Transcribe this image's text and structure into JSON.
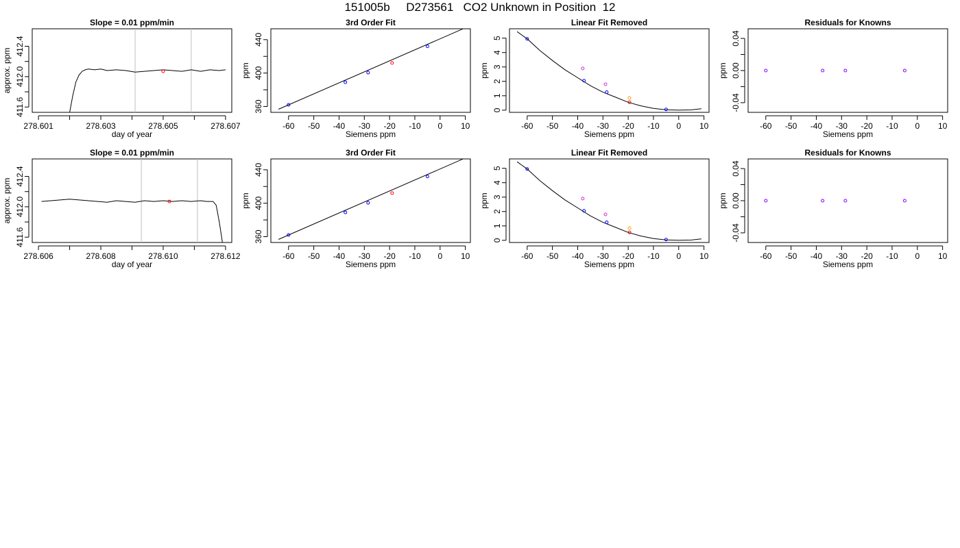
{
  "page": {
    "title": "151005b     D273561   CO2 Unknown in Position  12"
  },
  "colors": {
    "line": "#000000",
    "vline": "#bebebe",
    "axis": "#000000",
    "std_blue": "#0000ff",
    "unknown_red": "#ff0000",
    "magenta": "#cc33cc",
    "orange": "#ffa500",
    "purple": "#8000ff"
  },
  "chart_data": [
    {
      "id": "r1-timeseries",
      "type": "line",
      "title": "Slope =  0.01  ppm/min",
      "xlabel": "day of year",
      "ylabel": "approx. ppm",
      "xlim": [
        278.6008,
        278.6072
      ],
      "ylim": [
        411.53,
        412.63
      ],
      "xticks": [
        278.601,
        278.602,
        278.603,
        278.604,
        278.605,
        278.606,
        278.607
      ],
      "xticklabels": [
        "278.601",
        "",
        "278.603",
        "",
        "278.605",
        "",
        "278.607"
      ],
      "yticks": [
        411.6,
        411.8,
        412.0,
        412.2,
        412.4
      ],
      "yticklabels": [
        "411.6",
        "",
        "412.0",
        "",
        "412.4"
      ],
      "vlines": [
        278.6041,
        278.6059
      ],
      "series": [
        {
          "kind": "line",
          "x": [
            278.602,
            278.6021,
            278.6022,
            278.6023,
            278.6024,
            278.6025,
            278.6026,
            278.6028,
            278.603,
            278.6032,
            278.6035,
            278.6038,
            278.6041,
            278.6044,
            278.6047,
            278.605,
            278.6053,
            278.6056,
            278.6059,
            278.6062,
            278.6065,
            278.6068,
            278.607
          ],
          "y": [
            411.53,
            411.75,
            411.93,
            412.02,
            412.07,
            412.09,
            412.1,
            412.09,
            412.1,
            412.08,
            412.09,
            412.08,
            412.06,
            412.07,
            412.08,
            412.09,
            412.08,
            412.07,
            412.09,
            412.07,
            412.09,
            412.08,
            412.09
          ]
        },
        {
          "kind": "points",
          "color": "unknown_red",
          "x": [
            278.605
          ],
          "y": [
            412.07
          ]
        }
      ]
    },
    {
      "id": "r1-fit",
      "type": "scatter",
      "title": "3rd Order Fit",
      "xlabel": "Siemens ppm",
      "ylabel": "ppm",
      "xlim": [
        -67,
        12
      ],
      "ylim": [
        353,
        453
      ],
      "xticks": [
        -60,
        -50,
        -40,
        -30,
        -20,
        -10,
        0,
        10
      ],
      "xticklabels": [
        "-60",
        "-50",
        "-40",
        "-30",
        "-20",
        "-10",
        "0",
        "10"
      ],
      "yticks": [
        360,
        380,
        400,
        420,
        440
      ],
      "yticklabels": [
        "360",
        "",
        "400",
        "",
        "440"
      ],
      "series": [
        {
          "kind": "line",
          "x": [
            -64,
            9
          ],
          "y": [
            356.7,
            452.8
          ]
        },
        {
          "kind": "points",
          "color": "std_blue",
          "x": [
            -60,
            -37.5,
            -28.5,
            -5
          ],
          "y": [
            362,
            389,
            400.5,
            432
          ]
        },
        {
          "kind": "points",
          "color": "unknown_red",
          "x": [
            -19
          ],
          "y": [
            412.1
          ]
        }
      ]
    },
    {
      "id": "r1-linear-removed",
      "type": "scatter",
      "title": "Linear Fit Removed",
      "xlabel": "Siemens ppm",
      "ylabel": "ppm",
      "xlim": [
        -67,
        12
      ],
      "ylim": [
        -0.15,
        5.65
      ],
      "xticks": [
        -60,
        -50,
        -40,
        -30,
        -20,
        -10,
        0,
        10
      ],
      "xticklabels": [
        "-60",
        "-50",
        "-40",
        "-30",
        "-20",
        "-10",
        "0",
        "10"
      ],
      "yticks": [
        0,
        1,
        2,
        3,
        4,
        5
      ],
      "yticklabels": [
        "0",
        "1",
        "2",
        "3",
        "4",
        "5"
      ],
      "series": [
        {
          "kind": "curve",
          "x": [
            -64,
            -60,
            -55,
            -50,
            -45,
            -40,
            -35,
            -30,
            -25,
            -20,
            -15,
            -10,
            -5,
            0,
            5,
            9
          ],
          "y": [
            5.45,
            4.95,
            4.15,
            3.45,
            2.8,
            2.25,
            1.7,
            1.25,
            0.9,
            0.55,
            0.3,
            0.12,
            0.03,
            0.0,
            0.02,
            0.1
          ]
        },
        {
          "kind": "points",
          "color": "std_blue",
          "x": [
            -60,
            -37.5,
            -28.5,
            -5
          ],
          "y": [
            4.95,
            2.05,
            1.25,
            0.05
          ]
        },
        {
          "kind": "points",
          "color": "magenta",
          "x": [
            -38,
            -29
          ],
          "y": [
            2.9,
            1.8
          ]
        },
        {
          "kind": "points",
          "color": "orange",
          "x": [
            -19.5
          ],
          "y": [
            0.85
          ]
        },
        {
          "kind": "points",
          "color": "unknown_red",
          "x": [
            -19.5
          ],
          "y": [
            0.55
          ]
        }
      ]
    },
    {
      "id": "r1-residuals",
      "type": "scatter",
      "title": "Residuals for Knowns",
      "xlabel": "Siemens ppm",
      "ylabel": "ppm",
      "xlim": [
        -67,
        12
      ],
      "ylim": [
        -0.052,
        0.052
      ],
      "xticks": [
        -60,
        -50,
        -40,
        -30,
        -20,
        -10,
        0,
        10
      ],
      "xticklabels": [
        "-60",
        "-50",
        "-40",
        "-30",
        "-20",
        "-10",
        "0",
        "10"
      ],
      "yticks": [
        -0.04,
        -0.02,
        0,
        0.02,
        0.04
      ],
      "yticklabels": [
        "-0.04",
        "",
        "0.00",
        "",
        "0.04"
      ],
      "series": [
        {
          "kind": "points",
          "color": "purple",
          "x": [
            -60,
            -37.5,
            -28.5,
            -5
          ],
          "y": [
            0,
            0,
            0,
            0
          ]
        }
      ]
    },
    {
      "id": "r2-timeseries",
      "type": "line",
      "title": "Slope =  0.01  ppm/min",
      "xlabel": "day of year",
      "ylabel": "approx. ppm",
      "xlim": [
        278.6058,
        278.6122
      ],
      "ylim": [
        411.53,
        412.63
      ],
      "xticks": [
        278.606,
        278.607,
        278.608,
        278.609,
        278.61,
        278.611,
        278.612
      ],
      "xticklabels": [
        "278.606",
        "",
        "278.608",
        "",
        "278.610",
        "",
        "278.612"
      ],
      "yticks": [
        411.6,
        411.8,
        412.0,
        412.2,
        412.4
      ],
      "yticklabels": [
        "411.6",
        "",
        "412.0",
        "",
        "412.4"
      ],
      "vlines": [
        278.6093,
        278.6111
      ],
      "series": [
        {
          "kind": "line",
          "x": [
            278.6061,
            278.6064,
            278.6067,
            278.607,
            278.6073,
            278.6076,
            278.6079,
            278.6082,
            278.6085,
            278.6088,
            278.6091,
            278.6094,
            278.6097,
            278.61,
            278.6103,
            278.6106,
            278.6109,
            278.6112,
            278.6114,
            278.6116,
            278.6117,
            278.6118,
            278.6119
          ],
          "y": [
            412.07,
            412.08,
            412.09,
            412.1,
            412.09,
            412.08,
            412.07,
            412.06,
            412.08,
            412.07,
            412.06,
            412.08,
            412.07,
            412.08,
            412.07,
            412.08,
            412.07,
            412.08,
            412.07,
            412.07,
            412.02,
            411.8,
            411.53
          ]
        },
        {
          "kind": "points",
          "color": "unknown_red",
          "x": [
            278.6102
          ],
          "y": [
            412.07
          ]
        }
      ]
    },
    {
      "id": "r2-fit",
      "type": "scatter",
      "title": "3rd Order Fit",
      "xlabel": "Siemens ppm",
      "ylabel": "ppm",
      "xlim": [
        -67,
        12
      ],
      "ylim": [
        353,
        453
      ],
      "xticks": [
        -60,
        -50,
        -40,
        -30,
        -20,
        -10,
        0,
        10
      ],
      "xticklabels": [
        "-60",
        "-50",
        "-40",
        "-30",
        "-20",
        "-10",
        "0",
        "10"
      ],
      "yticks": [
        360,
        380,
        400,
        420,
        440
      ],
      "yticklabels": [
        "360",
        "",
        "400",
        "",
        "440"
      ],
      "series": [
        {
          "kind": "line",
          "x": [
            -64,
            9
          ],
          "y": [
            356.7,
            452.8
          ]
        },
        {
          "kind": "points",
          "color": "std_blue",
          "x": [
            -60,
            -37.5,
            -28.5,
            -5
          ],
          "y": [
            362,
            389,
            400.5,
            432
          ]
        },
        {
          "kind": "points",
          "color": "unknown_red",
          "x": [
            -19
          ],
          "y": [
            412.1
          ]
        }
      ]
    },
    {
      "id": "r2-linear-removed",
      "type": "scatter",
      "title": "Linear Fit Removed",
      "xlabel": "Siemens ppm",
      "ylabel": "ppm",
      "xlim": [
        -67,
        12
      ],
      "ylim": [
        -0.15,
        5.65
      ],
      "xticks": [
        -60,
        -50,
        -40,
        -30,
        -20,
        -10,
        0,
        10
      ],
      "xticklabels": [
        "-60",
        "-50",
        "-40",
        "-30",
        "-20",
        "-10",
        "0",
        "10"
      ],
      "yticks": [
        0,
        1,
        2,
        3,
        4,
        5
      ],
      "yticklabels": [
        "0",
        "1",
        "2",
        "3",
        "4",
        "5"
      ],
      "series": [
        {
          "kind": "curve",
          "x": [
            -64,
            -60,
            -55,
            -50,
            -45,
            -40,
            -35,
            -30,
            -25,
            -20,
            -15,
            -10,
            -5,
            0,
            5,
            9
          ],
          "y": [
            5.45,
            4.95,
            4.15,
            3.45,
            2.8,
            2.25,
            1.7,
            1.25,
            0.9,
            0.55,
            0.3,
            0.12,
            0.03,
            0.0,
            0.02,
            0.1
          ]
        },
        {
          "kind": "points",
          "color": "std_blue",
          "x": [
            -60,
            -37.5,
            -28.5,
            -5
          ],
          "y": [
            4.95,
            2.05,
            1.25,
            0.05
          ]
        },
        {
          "kind": "points",
          "color": "magenta",
          "x": [
            -38,
            -29
          ],
          "y": [
            2.9,
            1.8
          ]
        },
        {
          "kind": "points",
          "color": "orange",
          "x": [
            -19.5
          ],
          "y": [
            0.85
          ]
        },
        {
          "kind": "points",
          "color": "unknown_red",
          "x": [
            -19.5
          ],
          "y": [
            0.55
          ]
        }
      ]
    },
    {
      "id": "r2-residuals",
      "type": "scatter",
      "title": "Residuals for Knowns",
      "xlabel": "Siemens ppm",
      "ylabel": "ppm",
      "xlim": [
        -67,
        12
      ],
      "ylim": [
        -0.052,
        0.052
      ],
      "xticks": [
        -60,
        -50,
        -40,
        -30,
        -20,
        -10,
        0,
        10
      ],
      "xticklabels": [
        "-60",
        "-50",
        "-40",
        "-30",
        "-20",
        "-10",
        "0",
        "10"
      ],
      "yticks": [
        -0.04,
        -0.02,
        0,
        0.02,
        0.04
      ],
      "yticklabels": [
        "-0.04",
        "",
        "0.00",
        "",
        "0.04"
      ],
      "series": [
        {
          "kind": "points",
          "color": "purple",
          "x": [
            -60,
            -37.5,
            -28.5,
            -5
          ],
          "y": [
            0,
            0,
            0,
            0
          ]
        }
      ]
    }
  ]
}
